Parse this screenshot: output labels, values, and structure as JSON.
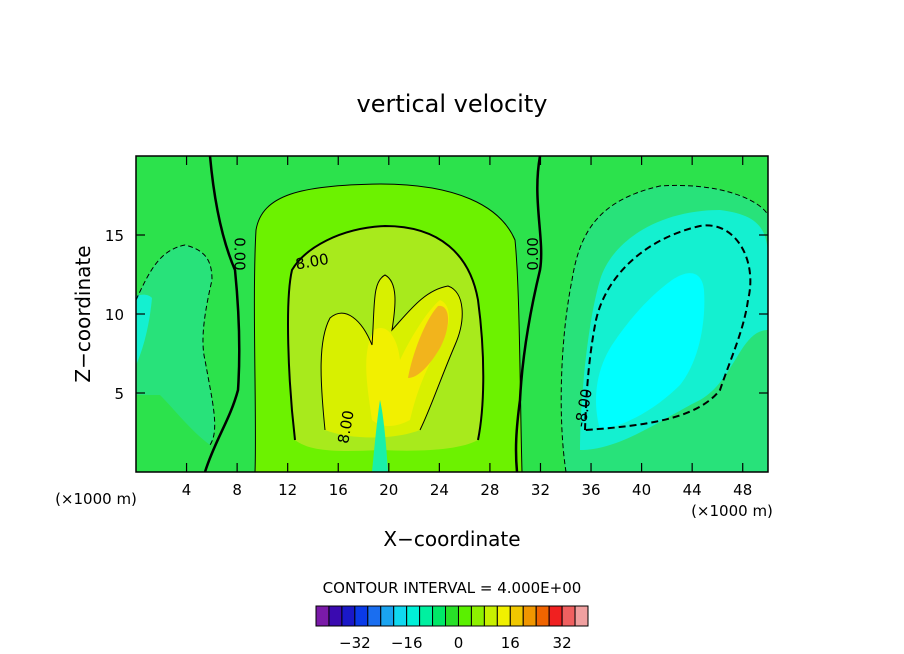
{
  "chart_data": {
    "type": "heatmap",
    "title": "vertical velocity",
    "xlabel": "X−coordinate",
    "ylabel": "Z−coordinate",
    "x_unit_left": "(×1000 m)",
    "x_unit_right": "(×1000 m)",
    "xlim": [
      0,
      50
    ],
    "ylim": [
      0,
      20
    ],
    "x_ticks": [
      4,
      8,
      12,
      16,
      20,
      24,
      28,
      32,
      36,
      40,
      44,
      48
    ],
    "y_ticks": [
      5,
      10,
      15
    ],
    "contour_interval_text": "CONTOUR INTERVAL = 4.000E+00",
    "contour_labels": [
      {
        "text": "0.00",
        "x": 7.8,
        "z": 13.8,
        "angle": 90
      },
      {
        "text": "8.00",
        "x": 14.0,
        "z": 13.0,
        "angle": -10
      },
      {
        "text": "8.00",
        "x": 17.0,
        "z": 2.8,
        "angle": -80
      },
      {
        "text": "0.00",
        "x": 31.8,
        "z": 13.8,
        "angle": -90
      },
      {
        "text": "-8.00",
        "x": 35.8,
        "z": 4.0,
        "angle": -80
      }
    ],
    "colorbar": {
      "levels": [
        -40,
        -36,
        -32,
        -28,
        -24,
        -20,
        -16,
        -12,
        -8,
        -4,
        0,
        4,
        8,
        12,
        16,
        20,
        24,
        28,
        32,
        36
      ],
      "colors": [
        "#7a1aa8",
        "#3a0ab0",
        "#1a18c8",
        "#0a3ae8",
        "#1a6ef0",
        "#1aa4f0",
        "#10d8f0",
        "#00f0d8",
        "#00f0a0",
        "#00e868",
        "#28e028",
        "#5af000",
        "#8ef000",
        "#c8f000",
        "#f0f000",
        "#f0c800",
        "#f09600",
        "#f06400",
        "#f02020",
        "#f06060",
        "#f0a0a0"
      ],
      "tick_values": [
        -32,
        -16,
        0,
        16,
        32
      ],
      "tick_labels": [
        "−32",
        "−16",
        "0",
        "16",
        "32"
      ]
    },
    "field_levels": [
      {
        "band": "-8 to -4",
        "color": "#1af0a8"
      },
      {
        "band": "-4 to 0",
        "color": "#28e27a"
      },
      {
        "band": "0 to 4",
        "color": "#2ce24c"
      },
      {
        "band": "4 to 8",
        "color": "#6cf200"
      },
      {
        "band": "8 to 12",
        "color": "#a8ea1c"
      },
      {
        "band": "12 to 16",
        "color": "#d8f000"
      },
      {
        "band": "16 to 20",
        "color": "#f2f000"
      },
      {
        "band": "20 to 24",
        "color": "#f2b41c"
      },
      {
        "band": "< -12",
        "color": "#14f0d0"
      },
      {
        "band": "< -16",
        "color": "#00ffff"
      }
    ]
  }
}
